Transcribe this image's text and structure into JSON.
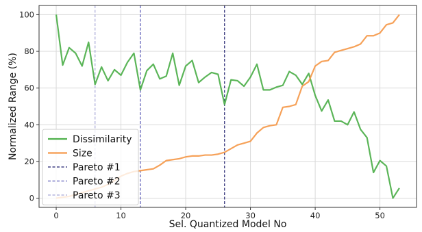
{
  "chart_data": {
    "type": "line",
    "title": "",
    "xlabel": "Sel. Quantized Model No",
    "ylabel": "Normalized Range (%)",
    "xlim": [
      -2.65,
      55.65
    ],
    "ylim": [
      -5,
      105
    ],
    "xticks": [
      0,
      10,
      20,
      30,
      40,
      50
    ],
    "yticks": [
      0,
      20,
      40,
      60,
      80,
      100
    ],
    "grid": true,
    "legend_position": "lower-left",
    "series": [
      {
        "name": "Dissimilarity",
        "color": "#4daf4a",
        "x": [
          0,
          1,
          2,
          3,
          4,
          5,
          6,
          7,
          8,
          9,
          10,
          11,
          12,
          13,
          14,
          15,
          16,
          17,
          18,
          19,
          20,
          21,
          22,
          23,
          24,
          25,
          26,
          27,
          28,
          29,
          30,
          31,
          32,
          33,
          34,
          35,
          36,
          37,
          38,
          39,
          40,
          41,
          42,
          43,
          44,
          45,
          46,
          47,
          48,
          49,
          50,
          51,
          52,
          53
        ],
        "values": [
          100,
          72.5,
          82,
          79,
          72,
          85,
          62,
          71.5,
          64,
          70,
          67,
          74,
          79,
          59,
          69.5,
          73,
          65,
          66.5,
          79,
          61.5,
          72,
          75,
          63,
          66,
          68.5,
          67.5,
          51,
          64.5,
          64,
          61,
          66,
          73,
          59,
          59,
          60.5,
          61.5,
          69,
          67,
          62,
          68,
          56,
          47.5,
          53.5,
          42,
          42,
          40,
          47,
          37.5,
          33,
          14,
          20.5,
          17.5,
          0,
          5.5
        ]
      },
      {
        "name": "Size",
        "color": "#f5994a",
        "x": [
          0,
          1,
          2,
          3,
          4,
          5,
          6,
          7,
          8,
          9,
          10,
          11,
          12,
          13,
          14,
          15,
          16,
          17,
          18,
          19,
          20,
          21,
          22,
          23,
          24,
          25,
          26,
          27,
          28,
          29,
          30,
          31,
          32,
          33,
          34,
          35,
          36,
          37,
          38,
          39,
          40,
          41,
          42,
          43,
          44,
          45,
          46,
          47,
          48,
          49,
          50,
          51,
          52,
          53
        ],
        "values": [
          0,
          0.5,
          1,
          2,
          3,
          4,
          5,
          6,
          7.5,
          9.5,
          12,
          13.5,
          14.5,
          15,
          15.5,
          16,
          18,
          20.5,
          21,
          21.5,
          22.5,
          23,
          23,
          23.5,
          23.5,
          24,
          25,
          27,
          29,
          30,
          31,
          35.5,
          38.5,
          39.5,
          40,
          49.5,
          50,
          51,
          61,
          63.5,
          72,
          74.5,
          75,
          79.5,
          80.5,
          81.5,
          82.5,
          84,
          88.5,
          88.5,
          90,
          94.5,
          95.5,
          100
        ]
      }
    ],
    "vlines": [
      {
        "name": "Pareto #1",
        "x": 26,
        "color": "#1f1f6e"
      },
      {
        "name": "Pareto #2",
        "x": 13,
        "color": "#5656b4"
      },
      {
        "name": "Pareto #3",
        "x": 6,
        "color": "#a8a8d8"
      }
    ]
  }
}
